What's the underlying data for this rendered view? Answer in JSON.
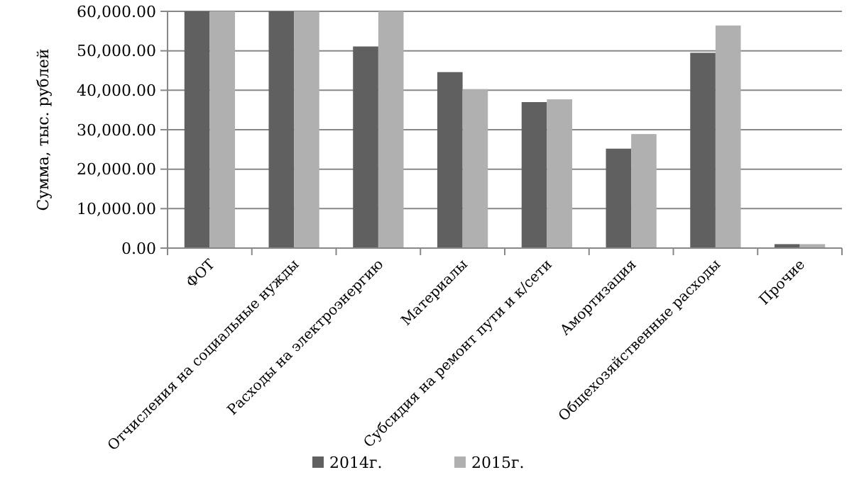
{
  "chart_data": {
    "type": "bar",
    "ylabel": "Сумма, тыс. рублей",
    "categories": [
      "ФОТ",
      "Отчисления на социальные нужды",
      "Расходы на электроэнергию",
      "Материалы",
      "Субсидия на ремонт пути и к/сети",
      "Амортизация",
      "Общехозяйственные расходы",
      "Прочие"
    ],
    "series": [
      {
        "name": "2014г.",
        "color": "#606060",
        "values": [
          60000,
          60000,
          51100,
          44600,
          37000,
          25200,
          49500,
          1000
        ]
      },
      {
        "name": "2015г.",
        "color": "#b0b0b0",
        "values": [
          60000,
          60000,
          60000,
          40300,
          37700,
          28900,
          56400,
          1000
        ]
      }
    ],
    "ylim": [
      0,
      60000
    ],
    "yticks": [
      {
        "value": 0,
        "label": "0.00"
      },
      {
        "value": 10000,
        "label": "10,000.00"
      },
      {
        "value": 20000,
        "label": "20,000.00"
      },
      {
        "value": 30000,
        "label": "30,000.00"
      },
      {
        "value": 40000,
        "label": "40,000.00"
      },
      {
        "value": 50000,
        "label": "50,000.00"
      },
      {
        "value": 60000,
        "label": "60,000.00"
      }
    ],
    "grid": "y",
    "legend": "bottom"
  }
}
